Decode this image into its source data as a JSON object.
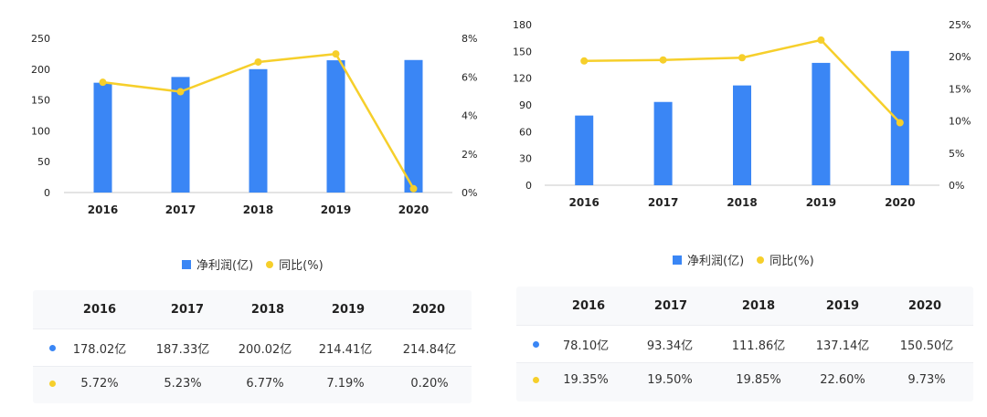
{
  "colors": {
    "bar": "#3a86f5",
    "line": "#f6cf2b"
  },
  "chart_data": [
    {
      "type": "bar+line",
      "categories": [
        "2016",
        "2017",
        "2018",
        "2019",
        "2020"
      ],
      "series": [
        {
          "name": "净利润(亿)",
          "type": "bar",
          "axis": "left",
          "values": [
            178.02,
            187.33,
            200.02,
            214.41,
            214.84
          ]
        },
        {
          "name": "同比(%)",
          "type": "line",
          "axis": "right",
          "values": [
            5.72,
            5.23,
            6.77,
            7.19,
            0.2
          ]
        }
      ],
      "left_ylim": [
        0,
        250
      ],
      "left_ticks": [
        "0",
        "50",
        "100",
        "150",
        "200",
        "250"
      ],
      "right_ylim": [
        0,
        8
      ],
      "right_ticks": [
        "0%",
        "2%",
        "4%",
        "6%",
        "8%"
      ],
      "legend": [
        "净利润(亿)",
        "同比(%)"
      ],
      "legend_position": "bottom",
      "grid": false
    },
    {
      "type": "bar+line",
      "categories": [
        "2016",
        "2017",
        "2018",
        "2019",
        "2020"
      ],
      "series": [
        {
          "name": "净利润(亿)",
          "type": "bar",
          "axis": "left",
          "values": [
            78.1,
            93.34,
            111.86,
            137.14,
            150.5
          ]
        },
        {
          "name": "同比(%)",
          "type": "line",
          "axis": "right",
          "values": [
            19.35,
            19.5,
            19.85,
            22.6,
            9.73
          ]
        }
      ],
      "left_ylim": [
        0,
        180
      ],
      "left_ticks": [
        "0",
        "30",
        "60",
        "90",
        "120",
        "150",
        "180"
      ],
      "right_ylim": [
        0,
        25
      ],
      "right_ticks": [
        "0%",
        "5%",
        "10%",
        "15%",
        "20%",
        "25%"
      ],
      "legend": [
        "净利润(亿)",
        "同比(%)"
      ],
      "legend_position": "bottom",
      "grid": false
    }
  ],
  "tables": [
    {
      "headers": [
        "2016",
        "2017",
        "2018",
        "2019",
        "2020"
      ],
      "profit_row": [
        "178.02亿",
        "187.33亿",
        "200.02亿",
        "214.41亿",
        "214.84亿"
      ],
      "yoy_row": [
        "5.72%",
        "5.23%",
        "6.77%",
        "7.19%",
        "0.20%"
      ]
    },
    {
      "headers": [
        "2016",
        "2017",
        "2018",
        "2019",
        "2020"
      ],
      "profit_row": [
        "78.10亿",
        "93.34亿",
        "111.86亿",
        "137.14亿",
        "150.50亿"
      ],
      "yoy_row": [
        "19.35%",
        "19.50%",
        "19.85%",
        "22.60%",
        "9.73%"
      ]
    }
  ]
}
